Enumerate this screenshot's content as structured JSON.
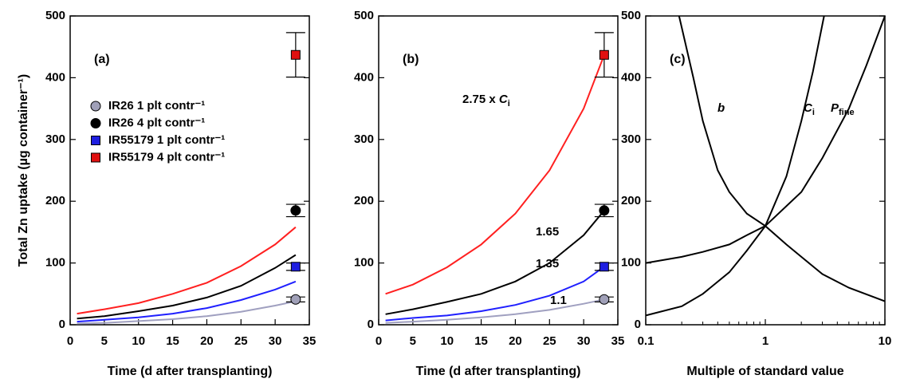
{
  "chart_data": [
    {
      "type": "line",
      "label": "(a)",
      "xlabel": "Time (d after transplanting)",
      "ylabel": "Total Zn uptake (µg container⁻¹)",
      "xlim": [
        0,
        35
      ],
      "xticks": [
        0,
        5,
        10,
        15,
        20,
        25,
        30,
        35
      ],
      "ylim": [
        0,
        500
      ],
      "yticks": [
        0,
        100,
        200,
        300,
        400,
        500
      ],
      "legend": "upper left",
      "x": [
        1,
        5,
        10,
        15,
        20,
        25,
        30,
        33
      ],
      "curves": [
        {
          "color": "#a0a0c0",
          "values": [
            2,
            3,
            6,
            9,
            14,
            21,
            31,
            38
          ]
        },
        {
          "color": "#000000",
          "values": [
            10,
            14,
            22,
            31,
            44,
            63,
            92,
            113
          ]
        },
        {
          "color": "#2020ff",
          "values": [
            5,
            8,
            12,
            18,
            27,
            40,
            57,
            70
          ]
        },
        {
          "color": "#ff2020",
          "values": [
            18,
            25,
            35,
            50,
            68,
            95,
            130,
            158
          ]
        }
      ],
      "points": [
        {
          "name": "IR26 1 plt contr⁻¹",
          "color": "#a0a0b8",
          "marker": "circle",
          "x": [
            33
          ],
          "y": [
            41
          ],
          "error": [
            4
          ]
        },
        {
          "name": "IR26 4 plt contr⁻¹",
          "color": "#000000",
          "marker": "circle",
          "x": [
            33
          ],
          "y": [
            185
          ],
          "error": [
            10
          ]
        },
        {
          "name": "IR55179 1 plt contr⁻¹",
          "color": "#1f1fe0",
          "marker": "square",
          "x": [
            33
          ],
          "y": [
            94
          ],
          "error": [
            6
          ]
        },
        {
          "name": "IR55179 4 plt contr⁻¹",
          "color": "#e01010",
          "marker": "square",
          "x": [
            33
          ],
          "y": [
            437
          ],
          "error": [
            36
          ]
        }
      ]
    },
    {
      "type": "line",
      "label": "(b)",
      "xlabel": "Time (d after transplanting)",
      "xlim": [
        0,
        35
      ],
      "xticks": [
        0,
        5,
        10,
        15,
        20,
        25,
        30,
        35
      ],
      "ylim": [
        0,
        500
      ],
      "yticks": [
        0,
        100,
        200,
        300,
        400,
        500
      ],
      "x": [
        1,
        5,
        10,
        15,
        20,
        25,
        30,
        33
      ],
      "curves": [
        {
          "color": "#a0a0c0",
          "label": "1.1",
          "values": [
            3,
            5,
            8,
            12,
            17,
            24,
            34,
            41
          ]
        },
        {
          "color": "#000000",
          "label": "1.65",
          "values": [
            17,
            25,
            37,
            50,
            70,
            100,
            145,
            185
          ]
        },
        {
          "color": "#2020ff",
          "label": "1.35",
          "values": [
            7,
            11,
            15,
            22,
            32,
            47,
            70,
            94
          ]
        },
        {
          "color": "#ff2020",
          "label": "2.75 x ",
          "symbol": "C",
          "sub": "i",
          "values": [
            50,
            65,
            93,
            130,
            180,
            250,
            350,
            437
          ]
        }
      ],
      "points": [
        {
          "color": "#a0a0b8",
          "marker": "circle",
          "x": [
            33
          ],
          "y": [
            41
          ],
          "error": [
            4
          ]
        },
        {
          "color": "#000000",
          "marker": "circle",
          "x": [
            33
          ],
          "y": [
            185
          ],
          "error": [
            10
          ]
        },
        {
          "color": "#1f1fe0",
          "marker": "square",
          "x": [
            33
          ],
          "y": [
            94
          ],
          "error": [
            6
          ]
        },
        {
          "color": "#e01010",
          "marker": "square",
          "x": [
            33
          ],
          "y": [
            437
          ],
          "error": [
            36
          ]
        }
      ]
    },
    {
      "type": "line",
      "label": "(c)",
      "xlabel": "Multiple of standard value",
      "xscale": "log",
      "xlim": [
        0.1,
        10
      ],
      "xticks": [
        0.1,
        1,
        10
      ],
      "ylim": [
        0,
        500
      ],
      "yticks": [
        0,
        100,
        200,
        300,
        400,
        500
      ],
      "curves": [
        {
          "color": "#000000",
          "symbol": "b",
          "x": [
            0.19,
            0.25,
            0.3,
            0.4,
            0.5,
            0.7,
            1,
            1.5,
            2,
            3,
            5,
            10
          ],
          "values": [
            500,
            400,
            330,
            250,
            215,
            180,
            160,
            130,
            110,
            82,
            60,
            38
          ]
        },
        {
          "color": "#000000",
          "symbol": "C",
          "sub": "i",
          "x": [
            0.1,
            0.2,
            0.3,
            0.5,
            0.7,
            1,
            1.5,
            2,
            2.5,
            3.1
          ],
          "values": [
            15,
            30,
            50,
            85,
            120,
            160,
            240,
            330,
            410,
            500
          ]
        },
        {
          "color": "#000000",
          "symbol": "P",
          "sub": "fine",
          "x": [
            0.1,
            0.2,
            0.3,
            0.5,
            0.7,
            1,
            2,
            3,
            5,
            7,
            10
          ],
          "values": [
            100,
            110,
            118,
            130,
            145,
            160,
            215,
            270,
            350,
            420,
            500
          ]
        }
      ]
    }
  ]
}
